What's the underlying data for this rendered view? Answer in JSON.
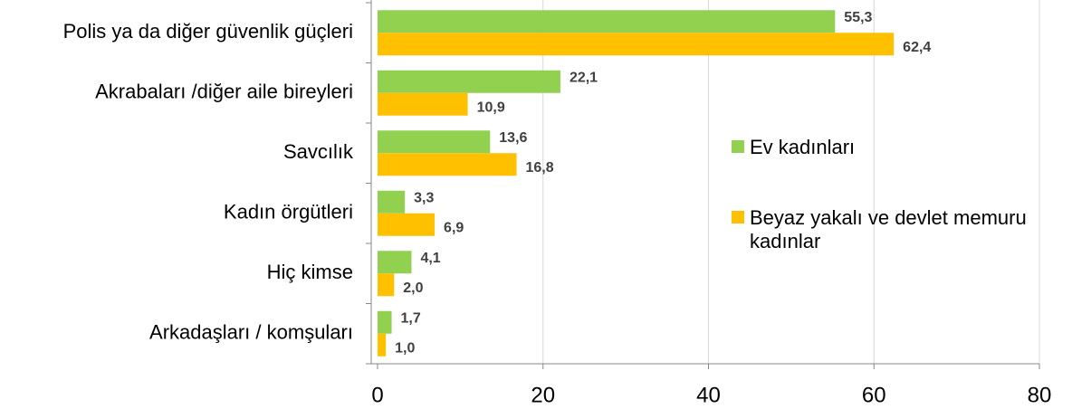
{
  "chart_data": {
    "type": "hbar",
    "categories": [
      "Polis ya da diğer güvenlik güçleri",
      "Akrabaları /diğer aile bireyleri",
      "Savcılık",
      "Kadın örgütleri",
      "Hiç kimse",
      "Arkadaşları / komşuları"
    ],
    "series": [
      {
        "name": "Ev kadınları",
        "color": "#92d050",
        "values": [
          55.3,
          22.1,
          13.6,
          3.3,
          4.1,
          1.7
        ],
        "value_labels": [
          "55,3",
          "22,1",
          "13,6",
          "3,3",
          "4,1",
          "1,7"
        ]
      },
      {
        "name": "Beyaz yakalı ve devlet memuru kadınlar",
        "color": "#ffc000",
        "values": [
          62.4,
          10.9,
          16.8,
          6.9,
          2.0,
          1.0
        ],
        "value_labels": [
          "62,4",
          "10,9",
          "16,8",
          "6,9",
          "2,0",
          "1,0"
        ]
      }
    ],
    "xlim": [
      0,
      80
    ],
    "xticks": [
      0,
      20,
      40,
      60,
      80
    ],
    "grid": true,
    "legend": "right"
  }
}
